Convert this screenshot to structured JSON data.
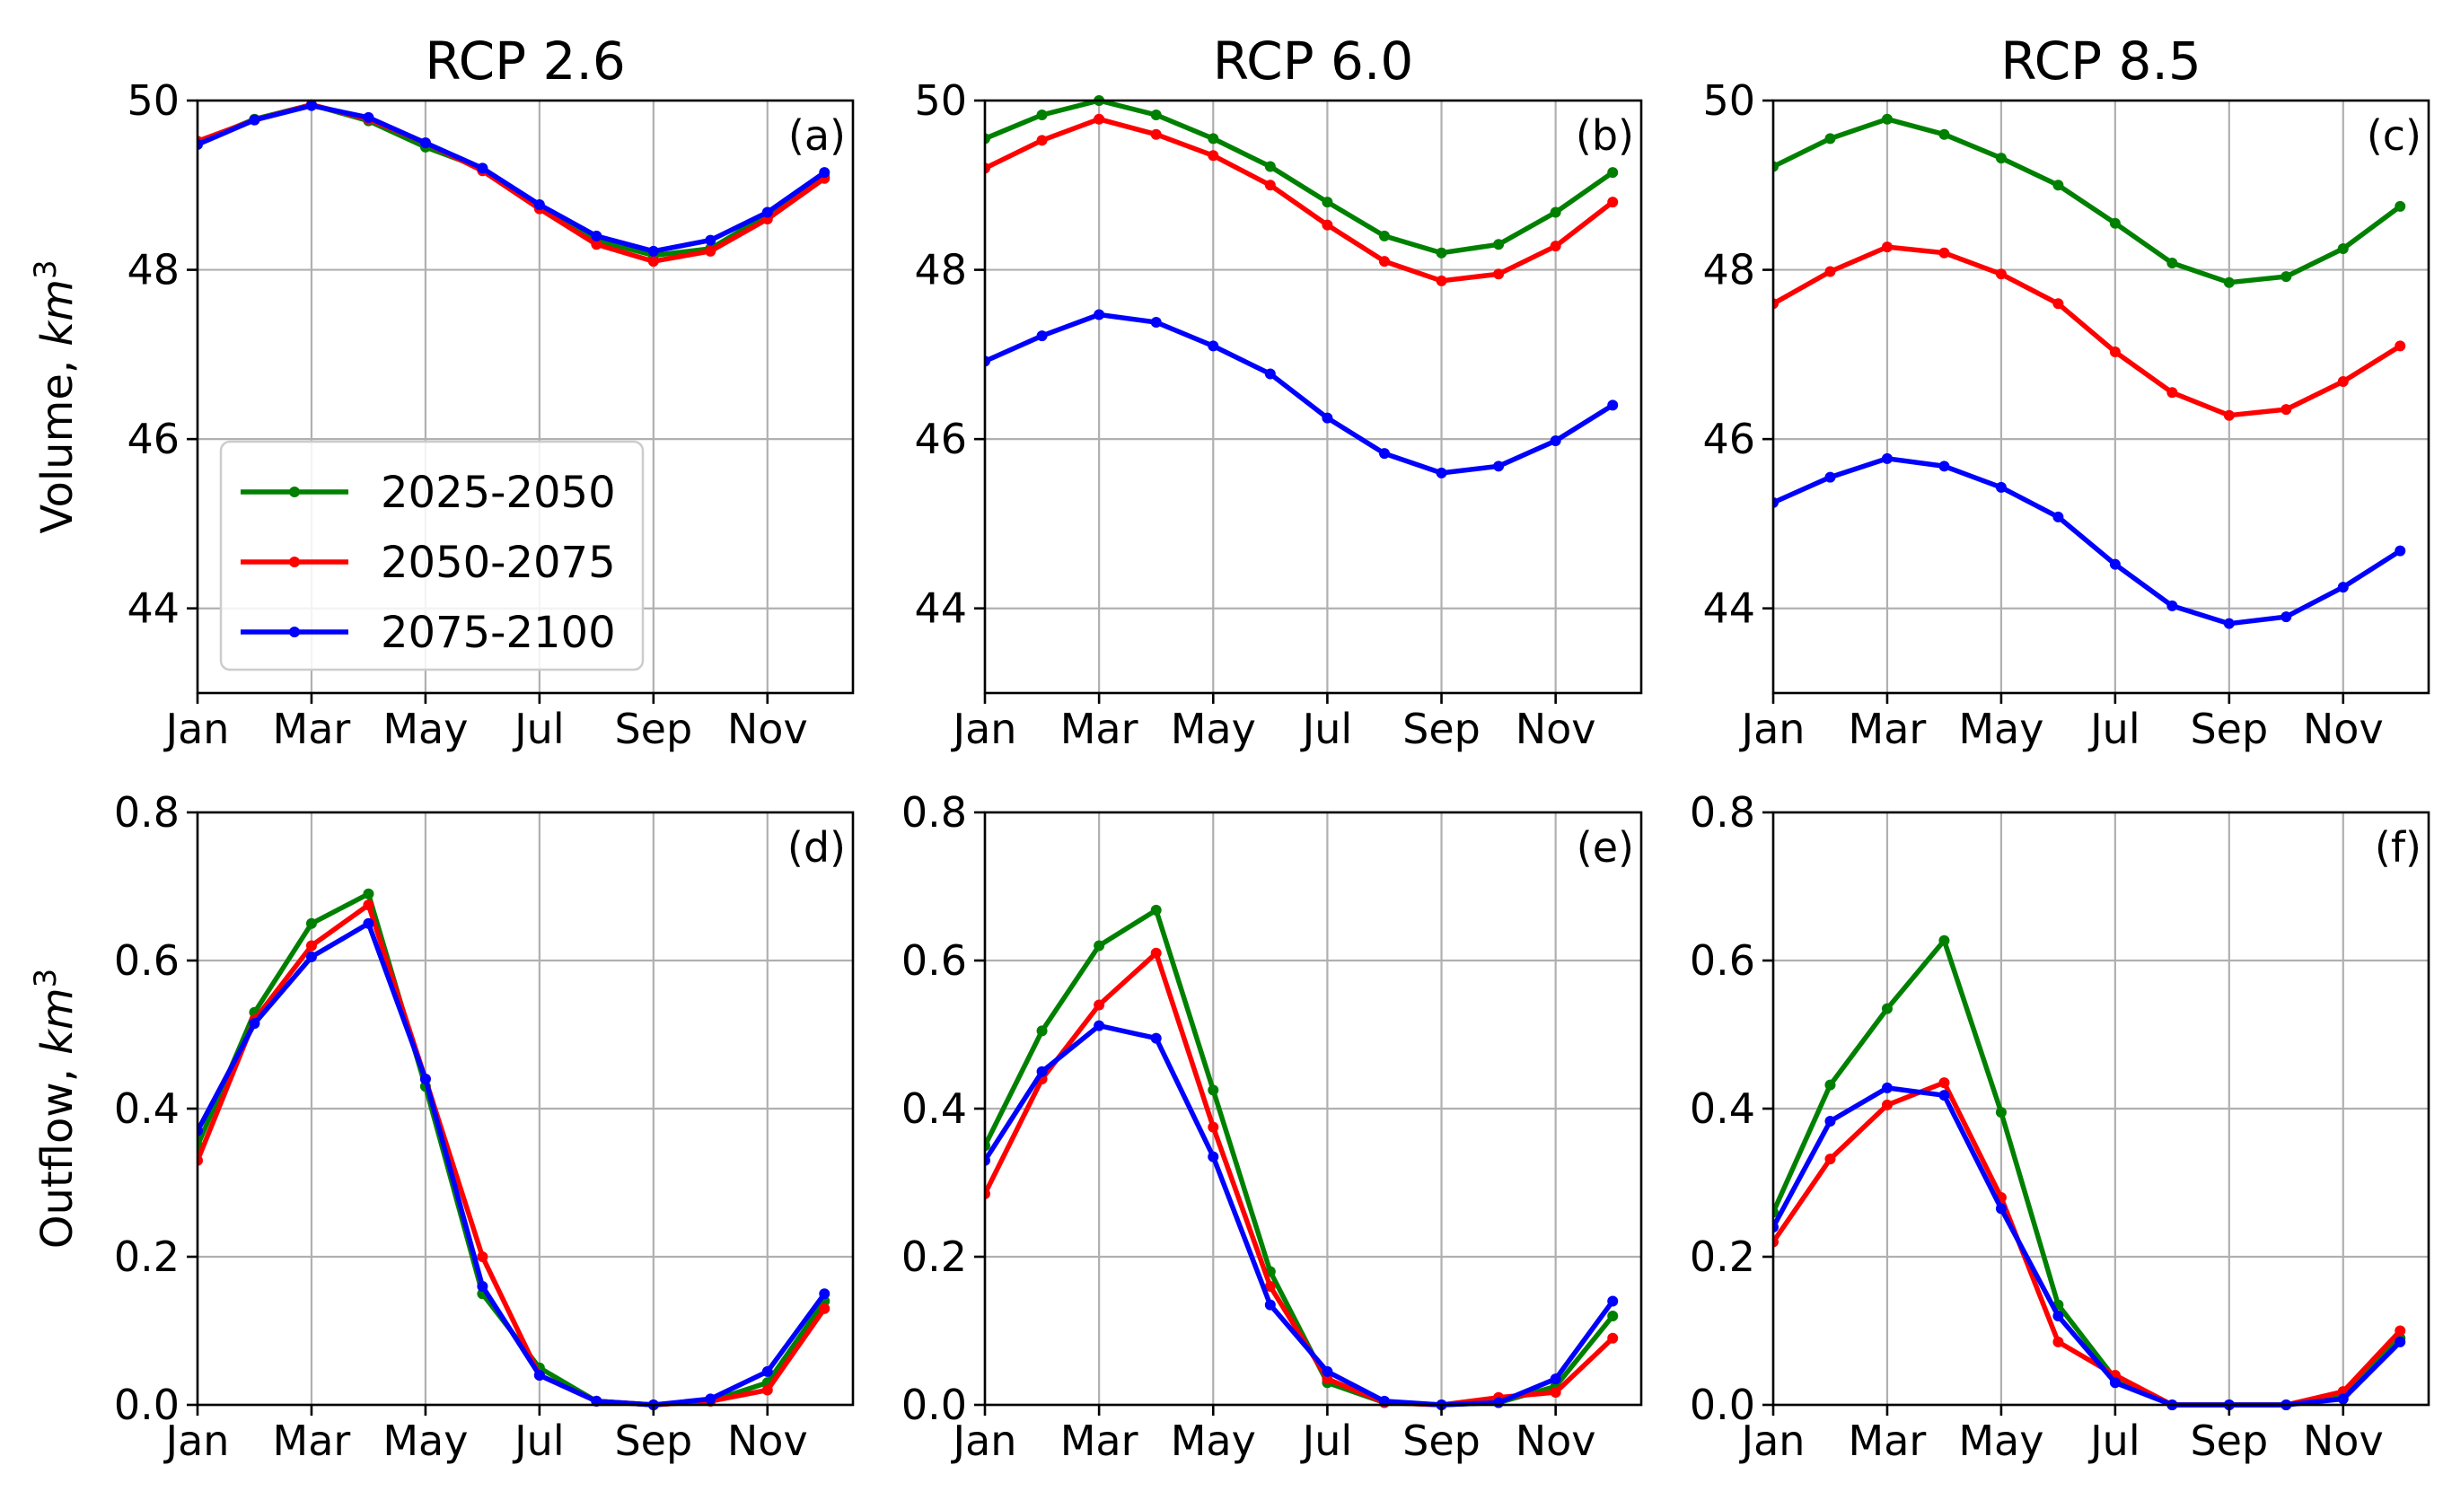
{
  "colors": {
    "2025-2050": "#008000",
    "2050-2075": "#ff0000",
    "2075-2100": "#0000ff"
  },
  "chart_data": [
    {
      "type": "line",
      "id": "a",
      "title": "RCP 2.6",
      "tag": "(a)",
      "ylabel_text": "Volume, ",
      "ylabel_unit": "km",
      "ylabel_exp": "3",
      "x": [
        1,
        2,
        3,
        4,
        5,
        6,
        7,
        8,
        9,
        10,
        11,
        12
      ],
      "xlim": [
        1,
        12.5
      ],
      "xticks": [
        1,
        3,
        5,
        7,
        9,
        11
      ],
      "xtick_labels": [
        "Jan",
        "Mar",
        "May",
        "Jul",
        "Sep",
        "Nov"
      ],
      "ylim": [
        43,
        50
      ],
      "yticks": [
        44,
        46,
        48,
        50
      ],
      "ytick_labels": [
        "44",
        "46",
        "48",
        "50"
      ],
      "grid": true,
      "legend": {
        "placement": "lower-left",
        "entries": [
          "2025-2050",
          "2050-2075",
          "2075-2100"
        ]
      },
      "series": [
        {
          "name": "2025-2050",
          "values": [
            49.5,
            49.78,
            49.95,
            49.76,
            49.45,
            49.2,
            48.75,
            48.35,
            48.17,
            48.25,
            48.65,
            49.1
          ]
        },
        {
          "name": "2050-2075",
          "values": [
            49.52,
            49.77,
            49.95,
            49.78,
            49.5,
            49.17,
            48.72,
            48.3,
            48.1,
            48.22,
            48.6,
            49.08
          ]
        },
        {
          "name": "2075-2100",
          "values": [
            49.48,
            49.77,
            49.94,
            49.8,
            49.5,
            49.2,
            48.77,
            48.4,
            48.22,
            48.35,
            48.68,
            49.15
          ]
        }
      ]
    },
    {
      "type": "line",
      "id": "b",
      "title": "RCP 6.0",
      "tag": "(b)",
      "x": [
        1,
        2,
        3,
        4,
        5,
        6,
        7,
        8,
        9,
        10,
        11,
        12
      ],
      "xlim": [
        1,
        12.5
      ],
      "xticks": [
        1,
        3,
        5,
        7,
        9,
        11
      ],
      "xtick_labels": [
        "Jan",
        "Mar",
        "May",
        "Jul",
        "Sep",
        "Nov"
      ],
      "ylim": [
        43,
        50
      ],
      "yticks": [
        44,
        46,
        48,
        50
      ],
      "ytick_labels": [
        "44",
        "46",
        "48",
        "50"
      ],
      "grid": true,
      "series": [
        {
          "name": "2025-2050",
          "values": [
            49.55,
            49.83,
            50.0,
            49.83,
            49.55,
            49.22,
            48.8,
            48.4,
            48.2,
            48.3,
            48.68,
            49.15
          ]
        },
        {
          "name": "2050-2075",
          "values": [
            49.2,
            49.53,
            49.78,
            49.6,
            49.35,
            49.0,
            48.53,
            48.1,
            47.87,
            47.95,
            48.28,
            48.8
          ]
        },
        {
          "name": "2075-2100",
          "values": [
            46.92,
            47.22,
            47.47,
            47.38,
            47.1,
            46.77,
            46.25,
            45.83,
            45.6,
            45.68,
            45.98,
            46.4
          ]
        }
      ]
    },
    {
      "type": "line",
      "id": "c",
      "title": "RCP 8.5",
      "tag": "(c)",
      "x": [
        1,
        2,
        3,
        4,
        5,
        6,
        7,
        8,
        9,
        10,
        11,
        12
      ],
      "xlim": [
        1,
        12.5
      ],
      "xticks": [
        1,
        3,
        5,
        7,
        9,
        11
      ],
      "xtick_labels": [
        "Jan",
        "Mar",
        "May",
        "Jul",
        "Sep",
        "Nov"
      ],
      "ylim": [
        43,
        50
      ],
      "yticks": [
        44,
        46,
        48,
        50
      ],
      "ytick_labels": [
        "44",
        "46",
        "48",
        "50"
      ],
      "grid": true,
      "series": [
        {
          "name": "2025-2050",
          "values": [
            49.22,
            49.55,
            49.78,
            49.6,
            49.32,
            49.0,
            48.55,
            48.08,
            47.85,
            47.92,
            48.25,
            48.75
          ]
        },
        {
          "name": "2050-2075",
          "values": [
            47.6,
            47.98,
            48.27,
            48.2,
            47.95,
            47.6,
            47.03,
            46.55,
            46.28,
            46.35,
            46.68,
            47.1
          ]
        },
        {
          "name": "2075-2100",
          "values": [
            45.25,
            45.55,
            45.77,
            45.68,
            45.43,
            45.08,
            44.52,
            44.03,
            43.82,
            43.9,
            44.25,
            44.68
          ]
        }
      ]
    },
    {
      "type": "line",
      "id": "d",
      "tag": "(d)",
      "ylabel_text": "Outflow, ",
      "ylabel_unit": "km",
      "ylabel_exp": "3",
      "x": [
        1,
        2,
        3,
        4,
        5,
        6,
        7,
        8,
        9,
        10,
        11,
        12
      ],
      "xlim": [
        1,
        12.5
      ],
      "xticks": [
        1,
        3,
        5,
        7,
        9,
        11
      ],
      "xtick_labels": [
        "Jan",
        "Mar",
        "May",
        "Jul",
        "Sep",
        "Nov"
      ],
      "ylim": [
        0,
        0.8
      ],
      "yticks": [
        0,
        0.2,
        0.4,
        0.6,
        0.8
      ],
      "ytick_labels": [
        "0.0",
        "0.2",
        "0.4",
        "0.6",
        "0.8"
      ],
      "grid": true,
      "series": [
        {
          "name": "2025-2050",
          "values": [
            0.35,
            0.53,
            0.65,
            0.69,
            0.43,
            0.15,
            0.05,
            0.005,
            0.0,
            0.005,
            0.03,
            0.14
          ]
        },
        {
          "name": "2050-2075",
          "values": [
            0.33,
            0.52,
            0.62,
            0.675,
            0.44,
            0.2,
            0.04,
            0.005,
            0.0,
            0.005,
            0.02,
            0.13
          ]
        },
        {
          "name": "2075-2100",
          "values": [
            0.37,
            0.515,
            0.605,
            0.65,
            0.44,
            0.16,
            0.04,
            0.005,
            0.0,
            0.008,
            0.045,
            0.15
          ]
        }
      ]
    },
    {
      "type": "line",
      "id": "e",
      "tag": "(e)",
      "x": [
        1,
        2,
        3,
        4,
        5,
        6,
        7,
        8,
        9,
        10,
        11,
        12
      ],
      "xlim": [
        1,
        12.5
      ],
      "xticks": [
        1,
        3,
        5,
        7,
        9,
        11
      ],
      "xtick_labels": [
        "Jan",
        "Mar",
        "May",
        "Jul",
        "Sep",
        "Nov"
      ],
      "ylim": [
        0,
        0.8
      ],
      "yticks": [
        0,
        0.2,
        0.4,
        0.6,
        0.8
      ],
      "ytick_labels": [
        "0.0",
        "0.2",
        "0.4",
        "0.6",
        "0.8"
      ],
      "grid": true,
      "series": [
        {
          "name": "2025-2050",
          "values": [
            0.35,
            0.505,
            0.62,
            0.668,
            0.425,
            0.18,
            0.03,
            0.003,
            0.0,
            0.003,
            0.025,
            0.12
          ]
        },
        {
          "name": "2050-2075",
          "values": [
            0.285,
            0.44,
            0.54,
            0.61,
            0.375,
            0.16,
            0.035,
            0.003,
            0.0,
            0.01,
            0.017,
            0.09
          ]
        },
        {
          "name": "2075-2100",
          "values": [
            0.33,
            0.45,
            0.512,
            0.495,
            0.335,
            0.135,
            0.045,
            0.005,
            0.0,
            0.003,
            0.035,
            0.14
          ]
        }
      ]
    },
    {
      "type": "line",
      "id": "f",
      "tag": "(f)",
      "x": [
        1,
        2,
        3,
        4,
        5,
        6,
        7,
        8,
        9,
        10,
        11,
        12
      ],
      "xlim": [
        1,
        12.5
      ],
      "xticks": [
        1,
        3,
        5,
        7,
        9,
        11
      ],
      "xtick_labels": [
        "Jan",
        "Mar",
        "May",
        "Jul",
        "Sep",
        "Nov"
      ],
      "ylim": [
        0,
        0.8
      ],
      "yticks": [
        0,
        0.2,
        0.4,
        0.6,
        0.8
      ],
      "ytick_labels": [
        "0.0",
        "0.2",
        "0.4",
        "0.6",
        "0.8"
      ],
      "grid": true,
      "series": [
        {
          "name": "2025-2050",
          "values": [
            0.26,
            0.432,
            0.535,
            0.627,
            0.395,
            0.135,
            0.035,
            0.0,
            0.0,
            0.0,
            0.012,
            0.09
          ]
        },
        {
          "name": "2050-2075",
          "values": [
            0.22,
            0.332,
            0.405,
            0.435,
            0.28,
            0.085,
            0.04,
            0.0,
            0.0,
            0.0,
            0.018,
            0.1
          ]
        },
        {
          "name": "2075-2100",
          "values": [
            0.24,
            0.383,
            0.428,
            0.418,
            0.265,
            0.12,
            0.03,
            0.0,
            0.0,
            0.0,
            0.008,
            0.085
          ]
        }
      ]
    }
  ]
}
